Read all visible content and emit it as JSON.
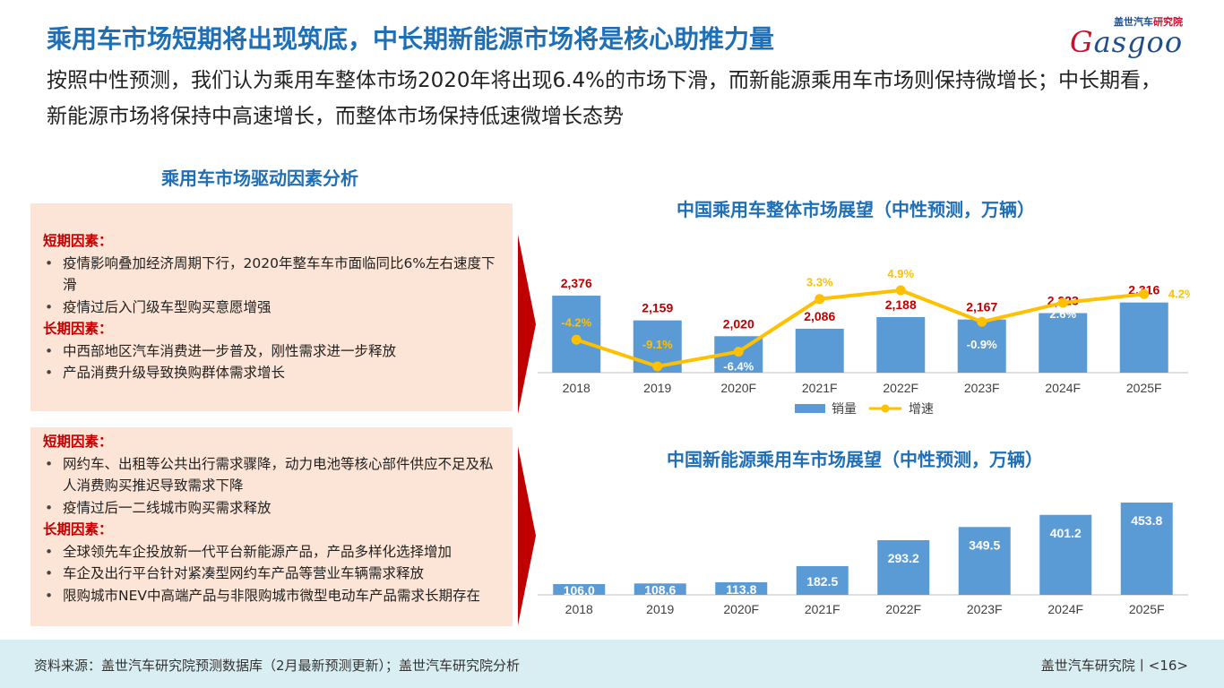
{
  "header": {
    "title": "乘用车市场短期将出现筑底，中长期新能源市场将是核心助推力量",
    "subtitle": "按照中性预测，我们认为乘用车整体市场2020年将出现6.4%的市场下滑，而新能源乘用车市场则保持微增长；中长期看，新能源市场将保持中高速增长，而整体市场保持低速微增长态势"
  },
  "logo": {
    "cn_a": "盖世汽车",
    "cn_b": "研究院",
    "en_a": "G",
    "en_b": "asgoo"
  },
  "left": {
    "section_title": "乘用车市场驱动因素分析",
    "box1": {
      "short_label": "短期因素：",
      "short_items": [
        "疫情影响叠加经济周期下行，2020年整车车市面临同比6%左右速度下滑",
        "疫情过后入门级车型购买意愿增强"
      ],
      "long_label": "长期因素：",
      "long_items": [
        "中西部地区汽车消费进一步普及，刚性需求进一步释放",
        "产品消费升级导致换购群体需求增长"
      ]
    },
    "box2": {
      "short_label": "短期因素：",
      "short_items": [
        "网约车、出租等公共出行需求骤降，动力电池等核心部件供应不足及私人消费购买推迟导致需求下降",
        "疫情过后一二线城市购买需求释放"
      ],
      "long_label": "长期因素：",
      "long_items": [
        "全球领先车企投放新一代平台新能源产品，产品多样化选择增加",
        "车企及出行平台针对紧凑型网约车产品等营业车辆需求释放",
        "限购城市NEV中高端产品与非限购城市微型电动车产品需求长期存在"
      ]
    }
  },
  "colors": {
    "bar": "#5b9bd5",
    "line": "#ffc000",
    "value_red": "#c00000",
    "title_blue": "#1f6fb6"
  },
  "chart_data": [
    {
      "type": "bar",
      "title": "中国乘用车整体市场展望（中性预测，万辆）",
      "categories": [
        "2018",
        "2019",
        "2020F",
        "2021F",
        "2022F",
        "2023F",
        "2024F",
        "2025F"
      ],
      "series": [
        {
          "name": "销量",
          "kind": "bar",
          "values": [
            2376,
            2159,
            2020,
            2086,
            2188,
            2167,
            2223,
            2316
          ],
          "labels": [
            "2,376",
            "2,159",
            "2,020",
            "2,086",
            "2,188",
            "2,167",
            "2,223",
            "2,316"
          ]
        },
        {
          "name": "增速",
          "kind": "line",
          "values": [
            -4.2,
            -9.1,
            -6.4,
            3.3,
            4.9,
            -0.9,
            2.6,
            4.2
          ],
          "labels": [
            "-4.2%",
            "-9.1%",
            "-6.4%",
            "3.3%",
            "4.9%",
            "-0.9%",
            "2.6%",
            "4.2%"
          ]
        }
      ],
      "legend": "bottom"
    },
    {
      "type": "bar",
      "title": "中国新能源乘用车市场展望（中性预测，万辆）",
      "categories": [
        "2018",
        "2019",
        "2020F",
        "2021F",
        "2022F",
        "2023F",
        "2024F",
        "2025F"
      ],
      "values": [
        106.0,
        108.6,
        113.8,
        182.5,
        293.2,
        349.5,
        401.2,
        453.8
      ],
      "labels": [
        "106.0",
        "108.6",
        "113.8",
        "182.5",
        "293.2",
        "349.5",
        "401.2",
        "453.8"
      ]
    }
  ],
  "footer": {
    "source": "资料来源：盖世汽车研究院预测数据库（2月最新预测更新）；盖世汽车研究院分析",
    "org": "盖世汽车研究院丨<16>"
  }
}
